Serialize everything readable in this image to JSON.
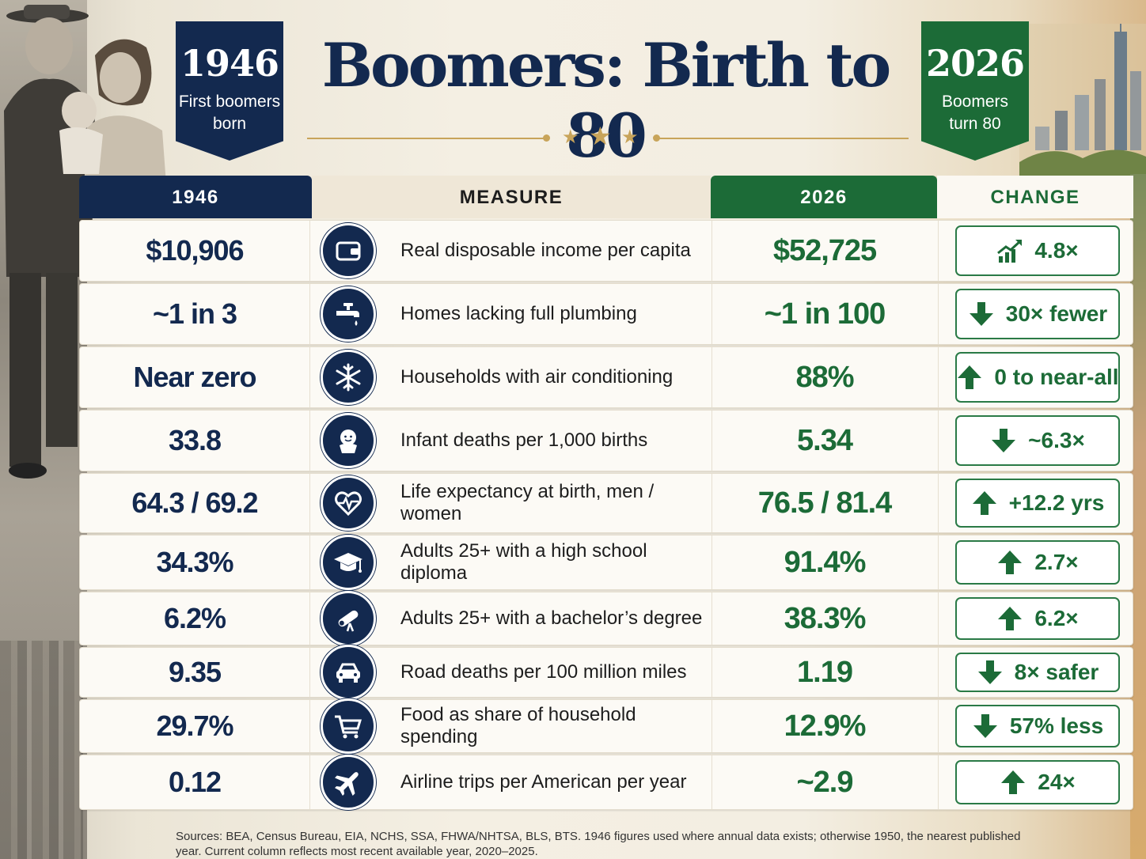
{
  "title": "Boomers: Birth to 80",
  "banner_left": {
    "year": "1946",
    "line1": "First boomers",
    "line2": "born"
  },
  "banner_right": {
    "year": "2026",
    "line1": "Boomers",
    "line2": "turn 80"
  },
  "table": {
    "headers": {
      "old": "1946",
      "measure": "MEASURE",
      "new": "2026",
      "change": "CHANGE"
    },
    "rows": [
      {
        "old": "$10,906",
        "icon": "wallet-icon",
        "measure": "Real disposable income per capita",
        "new": "$52,725",
        "change": "4.8×",
        "change_icon": "trend-up-icon"
      },
      {
        "old": "~1 in 3",
        "icon": "faucet-icon",
        "measure": "Homes lacking full plumbing",
        "new": "~1 in 100",
        "change": "30× fewer",
        "change_icon": "arrow-down-icon"
      },
      {
        "old": "Near zero",
        "icon": "snowflake-icon",
        "measure": "Households with air conditioning",
        "new": "88%",
        "change": "0 to near-all",
        "change_icon": "arrow-up-icon"
      },
      {
        "old": "33.8",
        "icon": "baby-icon",
        "measure": "Infant deaths per 1,000 births",
        "new": "5.34",
        "change": "~6.3×",
        "change_icon": "arrow-down-icon"
      },
      {
        "old": "64.3 / 69.2",
        "icon": "heartbeat-icon",
        "measure": "Life expectancy at birth, men / women",
        "new": "76.5 / 81.4",
        "change": "+12.2 yrs",
        "change_icon": "arrow-up-icon"
      },
      {
        "old": "34.3%",
        "icon": "graduation-cap-icon",
        "measure": "Adults 25+ with a high school diploma",
        "new": "91.4%",
        "change": "2.7×",
        "change_icon": "arrow-up-icon"
      },
      {
        "old": "6.2%",
        "icon": "diploma-icon",
        "measure": "Adults 25+ with a bachelor’s degree",
        "new": "38.3%",
        "change": "6.2×",
        "change_icon": "arrow-up-icon"
      },
      {
        "old": "9.35",
        "icon": "car-icon",
        "measure": "Road deaths per 100 million miles",
        "new": "1.19",
        "change": "8× safer",
        "change_icon": "arrow-down-icon"
      },
      {
        "old": "29.7%",
        "icon": "cart-icon",
        "measure": "Food as share of household spending",
        "new": "12.9%",
        "change": "57% less",
        "change_icon": "arrow-down-icon"
      },
      {
        "old": "0.12",
        "icon": "airplane-icon",
        "measure": "Airline trips per American per year",
        "new": "~2.9",
        "change": "24×",
        "change_icon": "arrow-up-icon"
      }
    ]
  },
  "sources": "Sources: BEA, Census Bureau, EIA, NCHS, SSA, FHWA/NHTSA, BLS, BTS. 1946 figures used where annual data exists; otherwise 1950, the nearest published year. Current column reflects most recent available year, 2020–2025.",
  "colors": {
    "navy": "#13294f",
    "green": "#1c6b37",
    "gold": "#c8a45a"
  }
}
